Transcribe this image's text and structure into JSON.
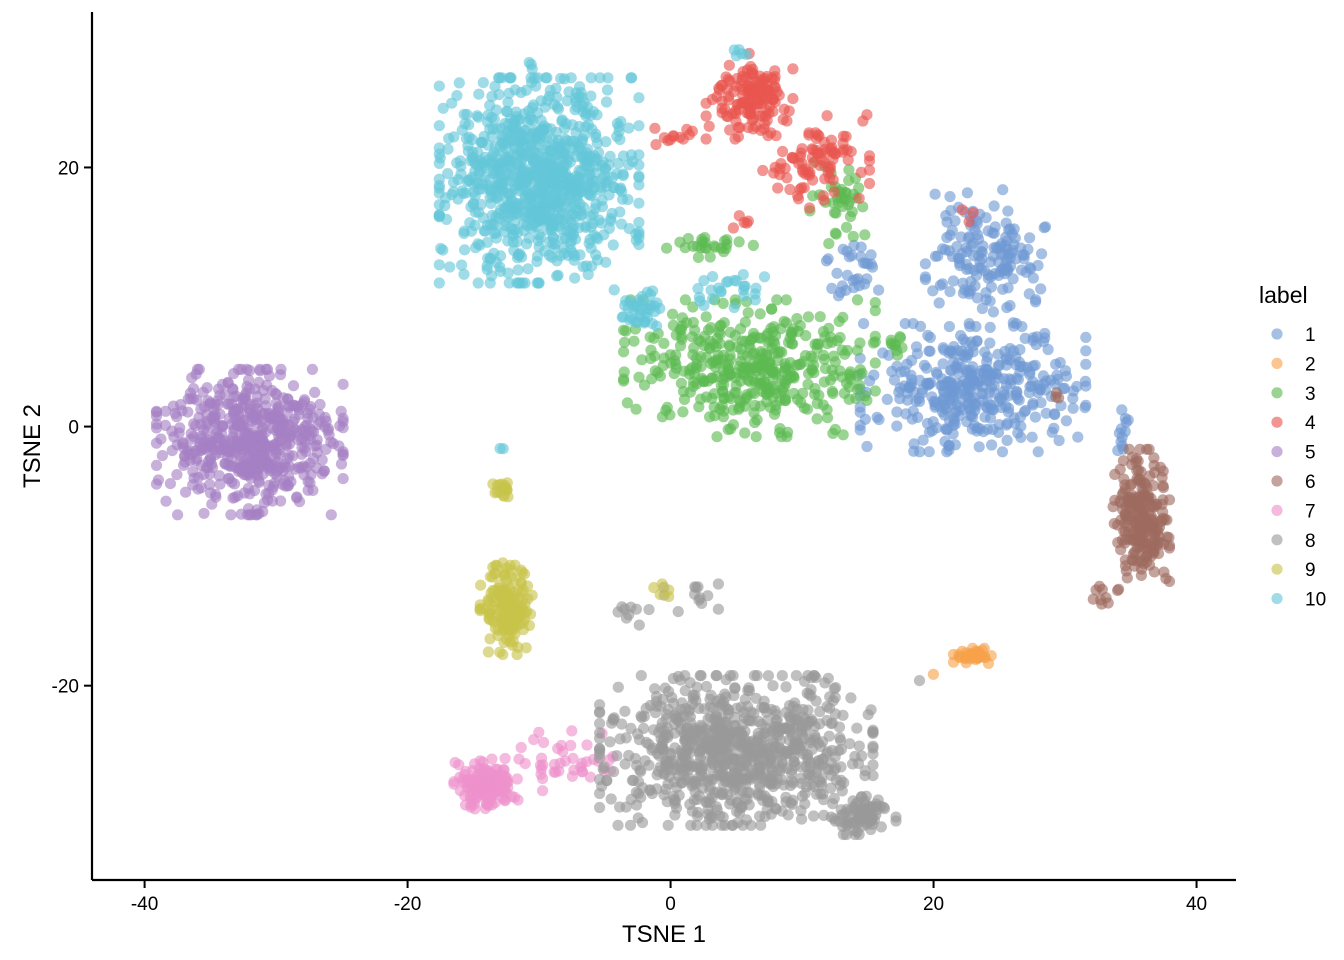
{
  "chart_data": {
    "type": "scatter",
    "title": "",
    "xlabel": "TSNE 1",
    "ylabel": "TSNE 2",
    "xlim": [
      -44,
      43
    ],
    "ylim": [
      -35,
      32
    ],
    "x_ticks": [
      -40,
      -20,
      0,
      20,
      40
    ],
    "y_ticks": [
      -20,
      0,
      20
    ],
    "grid": false,
    "legend": {
      "title": "label",
      "position": "right",
      "entries": [
        "1",
        "2",
        "3",
        "4",
        "5",
        "6",
        "7",
        "8",
        "9",
        "10"
      ]
    },
    "colors": {
      "1": "#6f9ad3",
      "2": "#f7a24a",
      "3": "#5cba51",
      "4": "#e8564f",
      "5": "#a47fc4",
      "6": "#9e6a5f",
      "7": "#ee92cc",
      "8": "#9a9a9a",
      "9": "#c8c34a",
      "10": "#64c7d8"
    },
    "series": [
      {
        "name": "1",
        "clusters": [
          {
            "center": [
              24,
              13
            ],
            "spread": [
              2.8,
              3.2
            ],
            "n": 160
          },
          {
            "center": [
              23,
              3
            ],
            "spread": [
              5.2,
              3.0
            ],
            "n": 380
          },
          {
            "center": [
              14,
              12
            ],
            "spread": [
              1.3,
              1.5
            ],
            "n": 30
          },
          {
            "center": [
              34.5,
              0
            ],
            "spread": [
              0.6,
              1.3
            ],
            "n": 12
          }
        ]
      },
      {
        "name": "2",
        "clusters": [
          {
            "center": [
              23,
              -17.7
            ],
            "spread": [
              0.9,
              0.35
            ],
            "n": 40
          },
          {
            "center": [
              20,
              -19
            ],
            "spread": [
              0.3,
              0.3
            ],
            "n": 1
          }
        ]
      },
      {
        "name": "3",
        "clusters": [
          {
            "center": [
              6,
              4.5
            ],
            "spread": [
              5.8,
              3.2
            ],
            "n": 420
          },
          {
            "center": [
              3,
              14
            ],
            "spread": [
              2.0,
              0.6
            ],
            "n": 25
          },
          {
            "center": [
              13,
              17
            ],
            "spread": [
              1.6,
              2.5
            ],
            "n": 40
          },
          {
            "center": [
              17,
              6.5
            ],
            "spread": [
              0.5,
              0.6
            ],
            "n": 10
          }
        ]
      },
      {
        "name": "4",
        "clusters": [
          {
            "center": [
              6,
              25.5
            ],
            "spread": [
              2.0,
              2.0
            ],
            "n": 150
          },
          {
            "center": [
              11,
              20.5
            ],
            "spread": [
              2.5,
              2.2
            ],
            "n": 90
          },
          {
            "center": [
              0.5,
              22.5
            ],
            "spread": [
              1.3,
              0.6
            ],
            "n": 12
          },
          {
            "center": [
              5.5,
              15.8
            ],
            "spread": [
              0.6,
              0.4
            ],
            "n": 5
          },
          {
            "center": [
              22.5,
              16.3
            ],
            "spread": [
              0.4,
              0.3
            ],
            "n": 3
          }
        ]
      },
      {
        "name": "5",
        "clusters": [
          {
            "center": [
              -32,
              -1.2
            ],
            "spread": [
              4.3,
              3.4
            ],
            "n": 560
          }
        ]
      },
      {
        "name": "6",
        "clusters": [
          {
            "center": [
              35.8,
              -7.2
            ],
            "spread": [
              1.3,
              3.3
            ],
            "n": 230
          },
          {
            "center": [
              32.8,
              -13
            ],
            "spread": [
              0.7,
              0.6
            ],
            "n": 8
          },
          {
            "center": [
              29.5,
              2.2
            ],
            "spread": [
              0.4,
              0.3
            ],
            "n": 3
          }
        ]
      },
      {
        "name": "7",
        "clusters": [
          {
            "center": [
              -14,
              -27.6
            ],
            "spread": [
              1.5,
              1.2
            ],
            "n": 150
          },
          {
            "center": [
              -8,
              -25.8
            ],
            "spread": [
              2.2,
              1.4
            ],
            "n": 40
          }
        ]
      },
      {
        "name": "8",
        "clusters": [
          {
            "center": [
              5,
              -25
            ],
            "spread": [
              6.3,
              3.5
            ],
            "n": 860
          },
          {
            "center": [
              14.5,
              -30
            ],
            "spread": [
              1.6,
              0.9
            ],
            "n": 80
          },
          {
            "center": [
              1,
              -13
            ],
            "spread": [
              1.6,
              0.8
            ],
            "n": 14
          },
          {
            "center": [
              -3,
              -14.5
            ],
            "spread": [
              0.6,
              0.5
            ],
            "n": 8
          },
          {
            "center": [
              19,
              -19.6
            ],
            "spread": [
              0.3,
              0.3
            ],
            "n": 1
          }
        ]
      },
      {
        "name": "9",
        "clusters": [
          {
            "center": [
              -12.5,
              -13.8
            ],
            "spread": [
              1.2,
              2.3
            ],
            "n": 160
          },
          {
            "center": [
              -12.8,
              -4.7
            ],
            "spread": [
              0.5,
              0.6
            ],
            "n": 18
          },
          {
            "center": [
              -0.8,
              -12.8
            ],
            "spread": [
              0.4,
              0.4
            ],
            "n": 5
          }
        ]
      },
      {
        "name": "10",
        "clusters": [
          {
            "center": [
              -10,
              19
            ],
            "spread": [
              4.6,
              4.8
            ],
            "n": 900
          },
          {
            "center": [
              -2,
              9
            ],
            "spread": [
              1.5,
              1.3
            ],
            "n": 40
          },
          {
            "center": [
              4.5,
              10.5
            ],
            "spread": [
              1.6,
              0.8
            ],
            "n": 25
          },
          {
            "center": [
              5.3,
              28.5
            ],
            "spread": [
              0.5,
              0.5
            ],
            "n": 5
          },
          {
            "center": [
              -10.8,
              27.9
            ],
            "spread": [
              0.2,
              0.2
            ],
            "n": 3
          },
          {
            "center": [
              -13,
              -1.8
            ],
            "spread": [
              0.2,
              0.2
            ],
            "n": 2
          }
        ]
      }
    ]
  }
}
